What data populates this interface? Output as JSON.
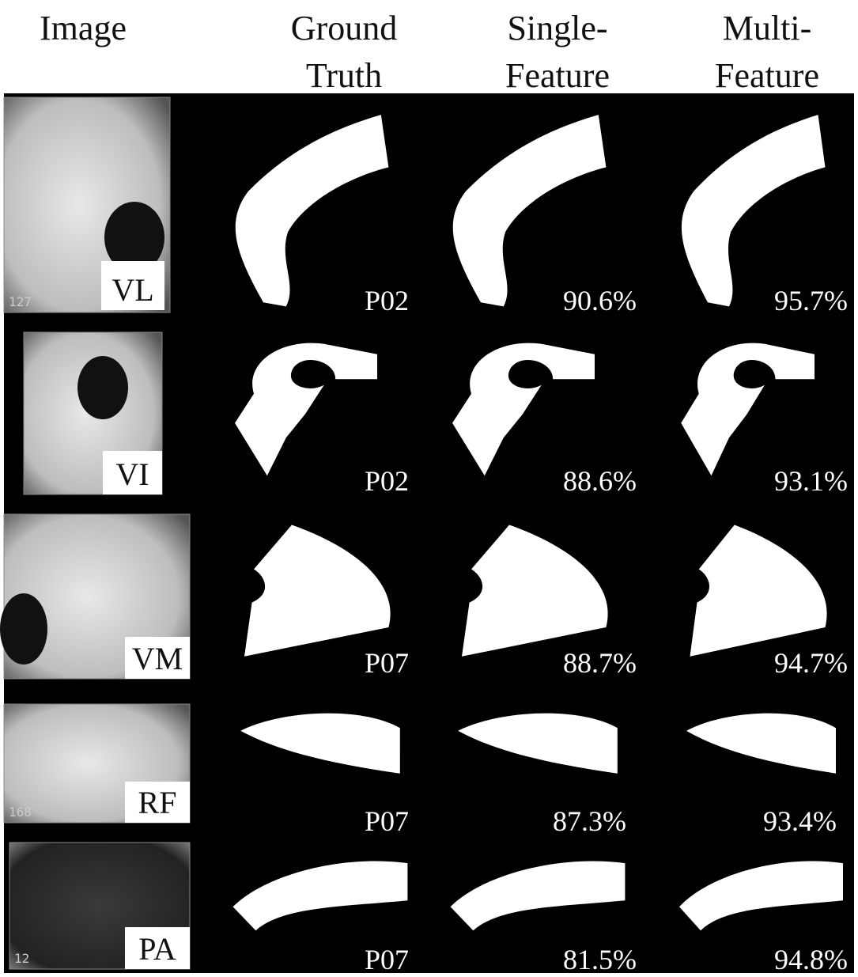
{
  "header": {
    "columns": [
      [
        "Image"
      ],
      [
        "Ground",
        "Truth"
      ],
      [
        "Single-",
        "Feature"
      ],
      [
        "Multi-",
        "Feature"
      ]
    ]
  },
  "rows": [
    {
      "muscle": "VL",
      "slice": "127",
      "patient": "P02",
      "single": "90.6%",
      "multi": "95.7%"
    },
    {
      "muscle": "VI",
      "patient": "P02",
      "single": "88.6%",
      "multi": "93.1%"
    },
    {
      "muscle": "VM",
      "patient": "P07",
      "single": "88.7%",
      "multi": "94.7%"
    },
    {
      "muscle": "RF",
      "slice": "168",
      "patient": "P07",
      "single": "87.3%",
      "multi": "93.4%"
    },
    {
      "muscle": "PA",
      "slice": "12",
      "patient": "P07",
      "single": "81.5%",
      "multi": "94.8%"
    }
  ]
}
